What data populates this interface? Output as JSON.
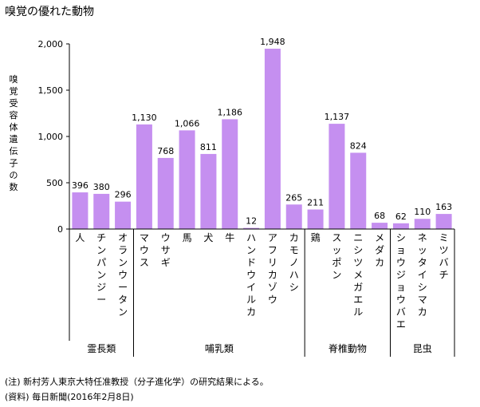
{
  "title": "嗅覚の優れた動物",
  "note": "(注) 新村芳人東京大特任准教授（分子進化学）の研究結果による。",
  "source": "(資料) 毎日新聞(2016年2月8日)",
  "colors": {
    "bar": "#c58ff0",
    "axis": "#000000"
  },
  "chart_data": {
    "type": "bar",
    "title": "嗅覚の優れた動物",
    "ylabel": "嗅覚受容体遺伝子の数",
    "xlabel": "",
    "ylim": [
      0,
      2000
    ],
    "yticks": [
      0,
      500,
      1000,
      1500,
      2000
    ],
    "ytick_labels": [
      "0",
      "500",
      "1,000",
      "1,500",
      "2,000"
    ],
    "grid": false,
    "categories": [
      "人",
      "チンパンジー",
      "オランウータン",
      "マウス",
      "ウサギ",
      "馬",
      "犬",
      "牛",
      "ハンドウイルカ",
      "アフリカゾウ",
      "カモノハシ",
      "鶏",
      "スッポン",
      "ニシツメガエル",
      "メダカ",
      "ショウジョウバエ",
      "ネッタイシマカ",
      "ミツバチ"
    ],
    "values": [
      396,
      380,
      296,
      1130,
      768,
      1066,
      811,
      1186,
      12,
      1948,
      265,
      211,
      1137,
      824,
      68,
      62,
      110,
      163
    ],
    "value_labels": [
      "396",
      "380",
      "296",
      "1,130",
      "768",
      "1,066",
      "811",
      "1,186",
      "12",
      "1,948",
      "265",
      "211",
      "1,137",
      "824",
      "68",
      "62",
      "110",
      "163"
    ],
    "groups": [
      {
        "name": "霊長類",
        "start": 0,
        "end": 2
      },
      {
        "name": "哺乳類",
        "start": 3,
        "end": 10
      },
      {
        "name": "脊椎動物",
        "start": 11,
        "end": 14
      },
      {
        "name": "昆虫",
        "start": 15,
        "end": 17
      }
    ]
  }
}
